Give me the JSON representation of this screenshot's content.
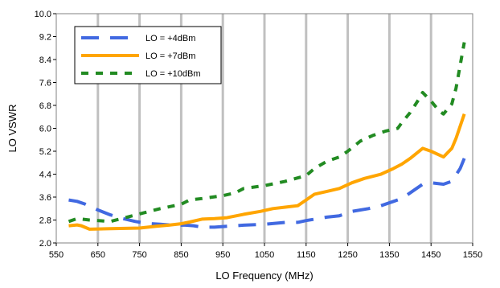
{
  "chart_data": {
    "type": "line",
    "title": "",
    "xlabel": "LO Frequency (MHz)",
    "ylabel": "LO VSWR",
    "xlim": [
      550,
      1550
    ],
    "ylim": [
      2.0,
      10.0
    ],
    "x_ticks": [
      "550",
      "650",
      "750",
      "850",
      "950",
      "1050",
      "1150",
      "1250",
      "1350",
      "1450",
      "1550"
    ],
    "y_ticks": [
      "2.0",
      "2.8",
      "3.6",
      "4.4",
      "5.2",
      "6.0",
      "6.8",
      "7.6",
      "8.4",
      "9.2",
      "10.0"
    ],
    "grid": "vertical",
    "legend_position": "top-left",
    "series": [
      {
        "name": "LO = +4dBm",
        "color": "#4169E1",
        "style": "long-dash",
        "x": [
          580,
          600,
          620,
          650,
          680,
          710,
          740,
          770,
          800,
          830,
          860,
          880,
          900,
          930,
          960,
          1000,
          1050,
          1100,
          1130,
          1150,
          1200,
          1230,
          1260,
          1300,
          1330,
          1360,
          1380,
          1400,
          1430,
          1450,
          1480,
          1500,
          1520,
          1530
        ],
        "values": [
          3.5,
          3.45,
          3.35,
          3.15,
          2.98,
          2.85,
          2.75,
          2.68,
          2.65,
          2.62,
          2.62,
          2.6,
          2.55,
          2.55,
          2.58,
          2.62,
          2.65,
          2.72,
          2.72,
          2.78,
          2.9,
          2.95,
          3.1,
          3.2,
          3.3,
          3.45,
          3.55,
          3.75,
          4.05,
          4.1,
          4.05,
          4.15,
          4.6,
          4.95
        ]
      },
      {
        "name": "LO = +7dBm",
        "color": "#FFA500",
        "style": "solid",
        "x": [
          580,
          600,
          610,
          630,
          680,
          750,
          790,
          820,
          850,
          870,
          900,
          930,
          960,
          1000,
          1040,
          1070,
          1100,
          1130,
          1150,
          1170,
          1200,
          1230,
          1260,
          1290,
          1330,
          1360,
          1380,
          1400,
          1430,
          1450,
          1480,
          1500,
          1510,
          1530
        ],
        "values": [
          2.6,
          2.63,
          2.6,
          2.48,
          2.5,
          2.52,
          2.58,
          2.62,
          2.67,
          2.73,
          2.83,
          2.85,
          2.88,
          3.0,
          3.1,
          3.2,
          3.25,
          3.3,
          3.5,
          3.7,
          3.8,
          3.9,
          4.1,
          4.25,
          4.4,
          4.6,
          4.75,
          4.95,
          5.3,
          5.2,
          5.0,
          5.3,
          5.65,
          6.5
        ]
      },
      {
        "name": "LO = +10dBm",
        "color": "#228B22",
        "style": "short-dash",
        "x": [
          580,
          600,
          630,
          680,
          720,
          760,
          800,
          850,
          870,
          900,
          950,
          980,
          1000,
          1050,
          1100,
          1150,
          1170,
          1200,
          1230,
          1250,
          1280,
          1310,
          1340,
          1370,
          1380,
          1400,
          1420,
          1430,
          1450,
          1470,
          1480,
          1500,
          1510,
          1530
        ],
        "values": [
          2.75,
          2.85,
          2.8,
          2.75,
          2.9,
          3.05,
          3.2,
          3.35,
          3.5,
          3.55,
          3.65,
          3.75,
          3.9,
          4.0,
          4.15,
          4.35,
          4.6,
          4.85,
          5.0,
          5.2,
          5.55,
          5.75,
          5.9,
          6.0,
          6.2,
          6.55,
          7.0,
          7.25,
          6.95,
          6.6,
          6.5,
          6.85,
          7.4,
          9.0
        ]
      }
    ]
  }
}
